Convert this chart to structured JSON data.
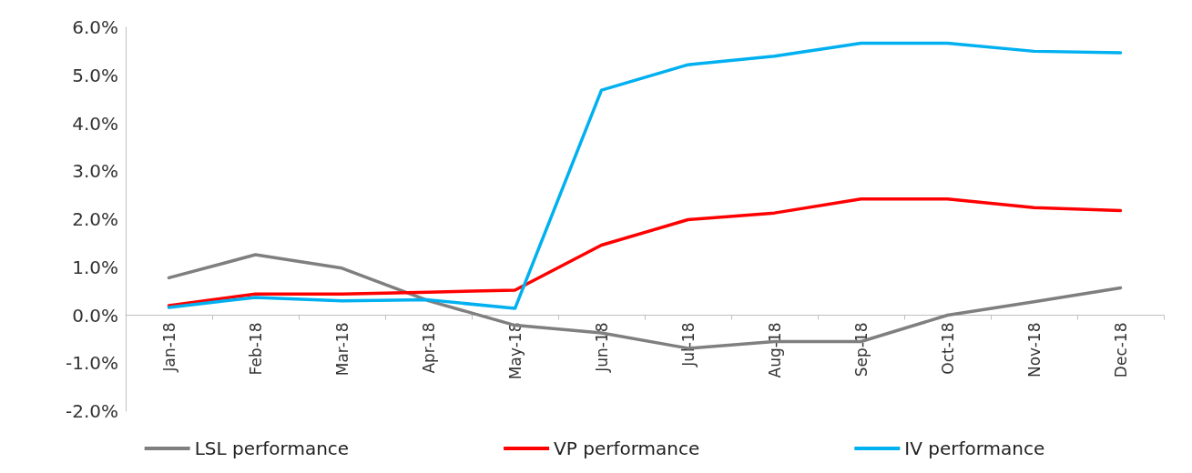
{
  "chart_data": {
    "type": "line",
    "categories": [
      "Jan-18",
      "Feb-18",
      "Mar-18",
      "Apr-18",
      "May-18",
      "Jun-18",
      "Jul-18",
      "Aug-18",
      "Sep-18",
      "Oct-18",
      "Nov-18",
      "Dec-18"
    ],
    "series": [
      {
        "name": "LSL performance",
        "color": "#7f7f7f",
        "values": [
          0.78,
          1.26,
          0.98,
          0.3,
          -0.21,
          -0.37,
          -0.69,
          -0.55,
          -0.55,
          0.0,
          0.28,
          0.57
        ]
      },
      {
        "name": "VP performance",
        "color": "#ff0000",
        "values": [
          0.2,
          0.44,
          0.44,
          0.48,
          0.52,
          1.46,
          1.99,
          2.13,
          2.42,
          2.42,
          2.24,
          2.18
        ]
      },
      {
        "name": "IV performance",
        "color": "#00b0f0",
        "values": [
          0.16,
          0.37,
          0.3,
          0.32,
          0.14,
          4.69,
          5.22,
          5.4,
          5.67,
          5.67,
          5.5,
          5.47
        ]
      }
    ],
    "ylim": [
      -2,
      6
    ],
    "yticks": [
      {
        "value": -2,
        "label": "-2.0%"
      },
      {
        "value": -1,
        "label": "-1.0%"
      },
      {
        "value": 0,
        "label": "0.0%"
      },
      {
        "value": 1,
        "label": "1.0%"
      },
      {
        "value": 2,
        "label": "2.0%"
      },
      {
        "value": 3,
        "label": "3.0%"
      },
      {
        "value": 4,
        "label": "4.0%"
      },
      {
        "value": 5,
        "label": "5.0%"
      },
      {
        "value": 6,
        "label": "6.0%"
      }
    ],
    "grid": false,
    "legend": "bottom",
    "marker": "none",
    "line_style": "solid"
  }
}
